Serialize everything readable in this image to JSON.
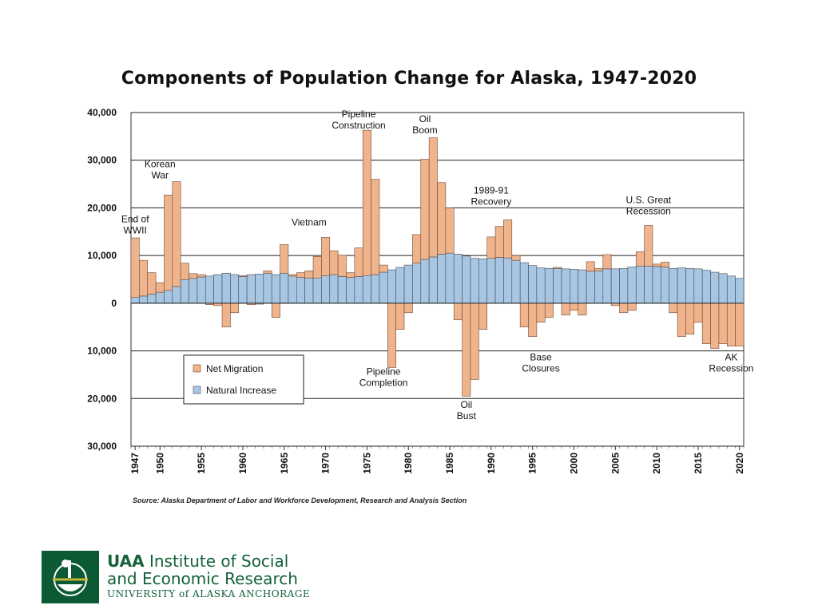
{
  "title": "Components of Population Change for Alaska, 1947-2020",
  "source": "Source: Alaska Department of Labor and Workforce Development, Research and Analysis Section",
  "logo": {
    "uaa": "UAA",
    "line1": "Institute of Social",
    "line2": "and Economic Research",
    "line3": "UNIVERSITY of ALASKA ANCHORAGE"
  },
  "colors": {
    "net_migration": "#f0b48c",
    "natural_increase": "#a7c6e4",
    "bar_outline": "#6b4a3a",
    "logo_green": "#0b5a33",
    "logo_gold": "#c4b636"
  },
  "chart_data": {
    "type": "bar",
    "stacked": true,
    "x": [
      1947,
      1948,
      1949,
      1950,
      1951,
      1952,
      1953,
      1954,
      1955,
      1956,
      1957,
      1958,
      1959,
      1960,
      1961,
      1962,
      1963,
      1964,
      1965,
      1966,
      1967,
      1968,
      1969,
      1970,
      1971,
      1972,
      1973,
      1974,
      1975,
      1976,
      1977,
      1978,
      1979,
      1980,
      1981,
      1982,
      1983,
      1984,
      1985,
      1986,
      1987,
      1988,
      1989,
      1990,
      1991,
      1992,
      1993,
      1994,
      1995,
      1996,
      1997,
      1998,
      1999,
      2000,
      2001,
      2002,
      2003,
      2004,
      2005,
      2006,
      2007,
      2008,
      2009,
      2010,
      2011,
      2012,
      2013,
      2014,
      2015,
      2016,
      2017,
      2018,
      2019,
      2020
    ],
    "x_ticks": [
      1947,
      1950,
      1955,
      1960,
      1965,
      1970,
      1975,
      1980,
      1985,
      1990,
      1995,
      2000,
      2005,
      2010,
      2015,
      2020
    ],
    "y_ticks": [
      40000,
      30000,
      20000,
      10000,
      0,
      -10000,
      -20000,
      -30000
    ],
    "y_tick_labels": [
      "40,000",
      "30,000",
      "20,000",
      "10,000",
      "0",
      "10,000",
      "20,000",
      "30,000"
    ],
    "ylim": [
      -30000,
      40000
    ],
    "grid": true,
    "legend_position": "lower-left",
    "series": [
      {
        "name": "Net Migration",
        "values": [
          12500,
          7500,
          4500,
          2000,
          20000,
          22000,
          3500,
          1000,
          500,
          -300,
          -500,
          -5000,
          -2000,
          200,
          -300,
          -200,
          500,
          -3000,
          6000,
          300,
          1000,
          1500,
          4500,
          8000,
          5000,
          4500,
          1000,
          6000,
          30500,
          20000,
          1500,
          -13500,
          -5500,
          -2000,
          6000,
          21000,
          25000,
          15000,
          9500,
          -3500,
          -19500,
          -16000,
          -5500,
          4500,
          6500,
          8000,
          1000,
          -5000,
          -7000,
          -4000,
          -3000,
          200,
          -2500,
          -1500,
          -2500,
          2000,
          500,
          3000,
          -500,
          -2000,
          -1500,
          3000,
          8500,
          500,
          1000,
          -2000,
          -7000,
          -6500,
          -4000,
          -8500,
          -9500,
          -8500,
          -9000,
          -9000
        ],
        "values_above_natural_only": true
      },
      {
        "name": "Natural Increase",
        "values": [
          1200,
          1500,
          1900,
          2300,
          2700,
          3500,
          4900,
          5200,
          5500,
          5700,
          6000,
          6300,
          6000,
          5600,
          6000,
          6100,
          6300,
          6000,
          6300,
          5700,
          5400,
          5300,
          5300,
          5800,
          6000,
          5600,
          5400,
          5600,
          5800,
          6000,
          6500,
          7000,
          7500,
          8000,
          8400,
          9200,
          9700,
          10300,
          10500,
          10300,
          9900,
          9400,
          9300,
          9400,
          9600,
          9500,
          9000,
          8500,
          7900,
          7400,
          7300,
          7300,
          7200,
          7100,
          7000,
          6700,
          6800,
          7200,
          7200,
          7300,
          7600,
          7800,
          7800,
          7700,
          7600,
          7300,
          7400,
          7300,
          7200,
          6900,
          6500,
          6200,
          5700,
          5200
        ],
        "values_above_natural_only": false
      }
    ],
    "legend": [
      "Net Migration",
      "Natural Increase"
    ],
    "annotations": [
      {
        "text": [
          "End of",
          "WWII"
        ],
        "year": 1947,
        "value": 17000
      },
      {
        "text": [
          "Korean",
          "War"
        ],
        "year": 1950,
        "value": 28500
      },
      {
        "text": [
          "Pipeline",
          "Construction"
        ],
        "year": 1974,
        "value": 39000
      },
      {
        "text": [
          "Oil",
          "Boom"
        ],
        "year": 1982,
        "value": 38000
      },
      {
        "text": [
          "1989-91",
          "Recovery"
        ],
        "year": 1990,
        "value": 23000
      },
      {
        "text": [
          "Vietnam"
        ],
        "year": 1968,
        "value": 16300
      },
      {
        "text": [
          "U.S. Great",
          "Recession"
        ],
        "year": 2009,
        "value": 21000
      },
      {
        "text": [
          "Pipeline",
          "Completion"
        ],
        "year": 1977,
        "value": -15000
      },
      {
        "text": [
          "Base",
          "Closures"
        ],
        "year": 1996,
        "value": -12000
      },
      {
        "text": [
          "Oil",
          "Bust"
        ],
        "year": 1987,
        "value": -22000
      },
      {
        "text": [
          "AK",
          "Recession"
        ],
        "year": 2019,
        "value": -12000
      }
    ]
  }
}
